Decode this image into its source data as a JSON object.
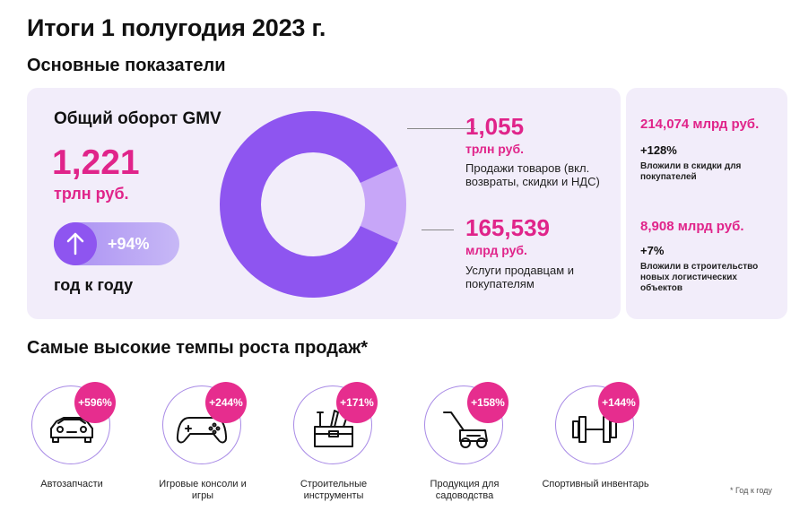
{
  "title": "Итоги 1 полугодия 2023 г.",
  "subtitle": "Основные показатели",
  "gmv": {
    "label": "Общий оборот GMV",
    "value": "1,221",
    "unit": "трлн руб.",
    "growth": "+94%",
    "growth_label": "год к году"
  },
  "donut": {
    "segments": [
      {
        "value": 1055,
        "color": "#8e55f0"
      },
      {
        "value": 165.539,
        "color": "#c7a6f8"
      }
    ]
  },
  "split": [
    {
      "value": "1,055",
      "unit": "трлн руб.",
      "desc": "Продажи товаров (вкл. возвраты, скидки и НДС)"
    },
    {
      "value": "165,539",
      "unit": "млрд руб.",
      "desc": "Услуги продавцам и покупателям"
    }
  ],
  "side": [
    {
      "value": "214,074 млрд руб.",
      "pct": "+128%",
      "desc": "Вложили в скидки для покупателей"
    },
    {
      "value": "8,908 млрд руб.",
      "pct": "+7%",
      "desc": "Вложили в строительство новых логистических объектов"
    }
  ],
  "growth_heading": "Самые высокие темпы роста продаж*",
  "categories": [
    {
      "badge": "+596%",
      "label": "Автозапчасти",
      "icon": "car-icon"
    },
    {
      "badge": "+244%",
      "label": "Игровые консоли и игры",
      "icon": "gamepad-icon"
    },
    {
      "badge": "+171%",
      "label": "Строительные инструменты",
      "icon": "toolbox-icon"
    },
    {
      "badge": "+158%",
      "label": "Продукция для садоводства",
      "icon": "lawnmower-icon"
    },
    {
      "badge": "+144%",
      "label": "Спортивный инвентарь",
      "icon": "dumbbell-icon"
    }
  ],
  "footnote": "* Год к году",
  "colors": {
    "accent": "#e0248a",
    "purple": "#8e55f0",
    "panel": "#f2edfa"
  }
}
